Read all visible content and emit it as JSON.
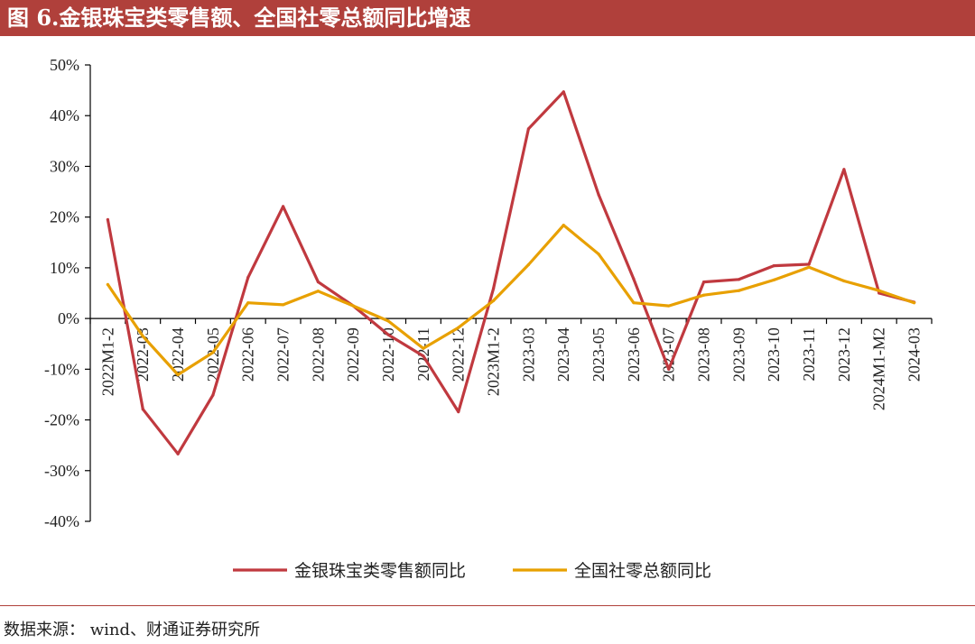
{
  "header": {
    "title": "图 6.金银珠宝类零售额、全国社零总额同比增速"
  },
  "footer": {
    "source": "数据来源： wind、财通证券研究所"
  },
  "colors": {
    "title_bg": "#b0403b",
    "series1": "#c0393f",
    "series2": "#e8a000",
    "axis": "#000000"
  },
  "chart_data": {
    "type": "line",
    "title": "图 6.金银珠宝类零售额、全国社零总额同比增速",
    "xlabel": "",
    "ylabel": "",
    "ylim": [
      -40,
      50
    ],
    "ytick_step": 10,
    "ytick_labels": [
      "50%",
      "40%",
      "30%",
      "20%",
      "10%",
      "0%",
      "-10%",
      "-20%",
      "-30%",
      "-40%"
    ],
    "grid": false,
    "legend_position": "bottom",
    "categories": [
      "2022M1-2",
      "2022-03",
      "2022-04",
      "2022-05",
      "2022-06",
      "2022-07",
      "2022-08",
      "2022-09",
      "2022-10",
      "2022-11",
      "2022-12",
      "2023M1-2",
      "2023-03",
      "2023-04",
      "2023-05",
      "2023-06",
      "2023-07",
      "2023-08",
      "2023-09",
      "2023-10",
      "2023-11",
      "2023-12",
      "2024M1-M2",
      "2024-03"
    ],
    "series": [
      {
        "name": "金银珠宝类零售额同比",
        "color": "#c0393f",
        "values": [
          19.5,
          -17.9,
          -26.7,
          -15.1,
          8.1,
          22.1,
          7.2,
          2.5,
          -3.2,
          -7.4,
          -18.4,
          5.9,
          37.4,
          44.7,
          24.4,
          7.8,
          -10.0,
          7.2,
          7.7,
          10.4,
          10.7,
          29.4,
          5.0,
          3.2
        ]
      },
      {
        "name": "全国社零总额同比",
        "color": "#e8a000",
        "values": [
          6.7,
          -3.5,
          -11.1,
          -6.7,
          3.1,
          2.7,
          5.4,
          2.5,
          -0.5,
          -5.9,
          -1.8,
          3.5,
          10.6,
          18.4,
          12.7,
          3.1,
          2.5,
          4.6,
          5.5,
          7.6,
          10.1,
          7.4,
          5.5,
          3.1
        ]
      }
    ]
  }
}
